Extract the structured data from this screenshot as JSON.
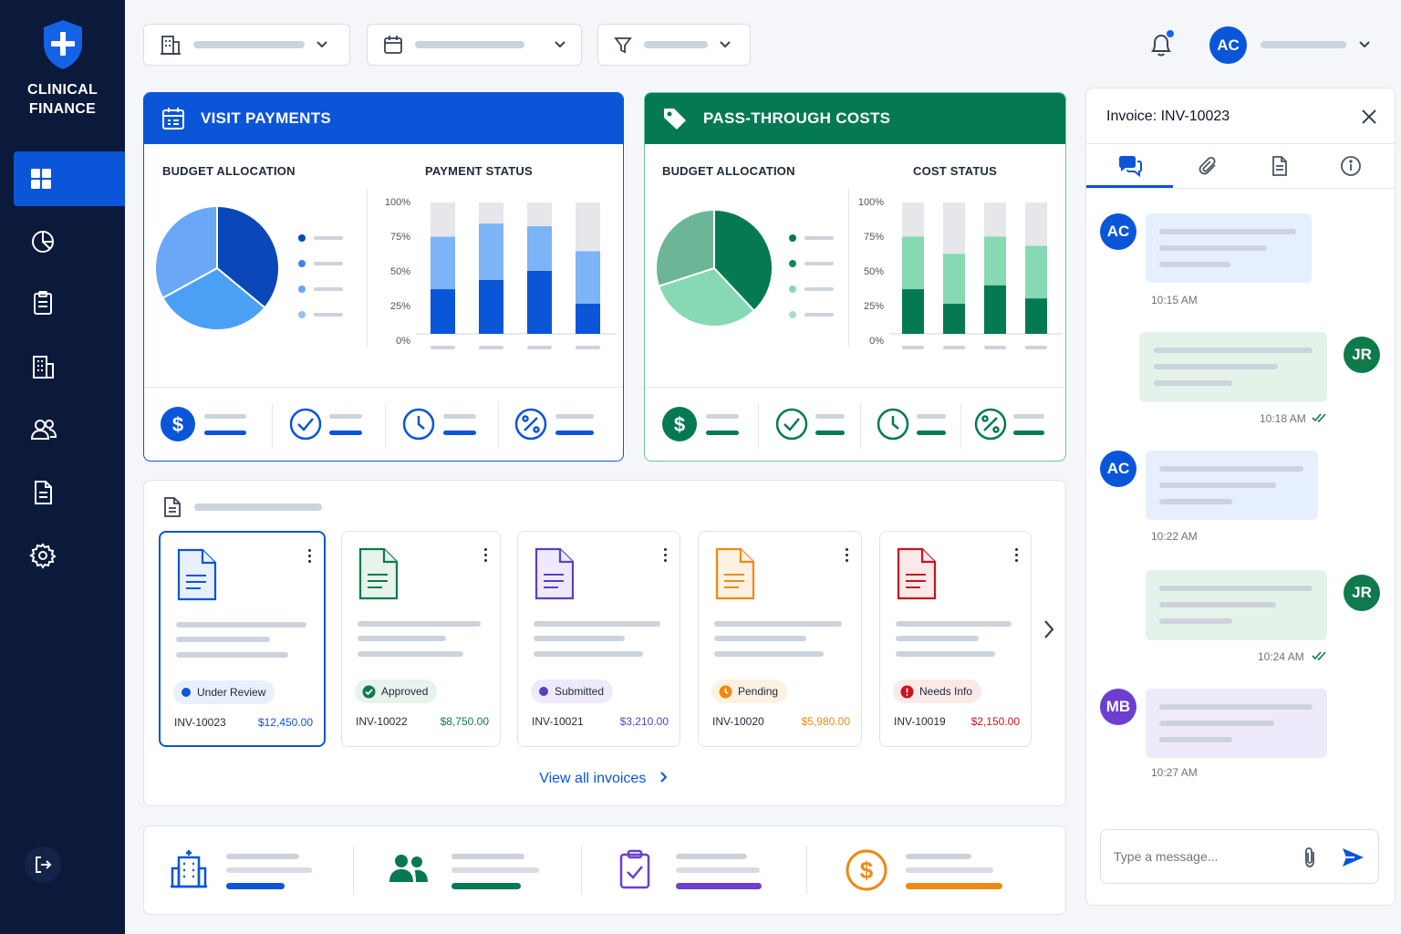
{
  "app": {
    "brand_line1": "CLINICAL",
    "brand_line2": "FINANCE"
  },
  "sidebar": {
    "items": [
      {
        "name": "dashboard",
        "icon": "grid-icon",
        "active": true
      },
      {
        "name": "reports",
        "icon": "pie-chart-icon"
      },
      {
        "name": "tasks",
        "icon": "clipboard-icon"
      },
      {
        "name": "sites",
        "icon": "building-icon"
      },
      {
        "name": "users",
        "icon": "users-icon"
      },
      {
        "name": "documents",
        "icon": "document-icon"
      },
      {
        "name": "settings",
        "icon": "gear-icon"
      }
    ],
    "logout_icon": "logout-icon"
  },
  "topbar": {
    "filters": [
      {
        "icon": "building-icon"
      },
      {
        "icon": "calendar-icon"
      },
      {
        "icon": "filter-icon"
      }
    ],
    "user_initials": "AC"
  },
  "visit_payments": {
    "title": "VISIT PAYMENTS",
    "budget_title": "BUDGET ALLOCATION",
    "status_title": "PAYMENT STATUS",
    "color": "#0b55d9"
  },
  "pass_through": {
    "title": "PASS-THROUGH COSTS",
    "budget_title": "BUDGET ALLOCATION",
    "status_title": "COST STATUS",
    "color": "#057a52"
  },
  "axis_ticks": [
    "100%",
    "75%",
    "50%",
    "25%",
    "0%"
  ],
  "chart_data": [
    {
      "type": "pie",
      "title": "BUDGET ALLOCATION",
      "values": [
        36,
        31,
        33
      ],
      "colors": [
        "#0a47b8",
        "#4aa0f5",
        "#6aa8f7"
      ]
    },
    {
      "type": "bar",
      "title": "PAYMENT STATUS",
      "categories": [
        "",
        "",
        "",
        ""
      ],
      "ylim": [
        0,
        100
      ],
      "yticks": [
        "0%",
        "25%",
        "50%",
        "75%",
        "100%"
      ],
      "series": [
        {
          "values": [
            34,
            41,
            48,
            23
          ],
          "color": "#0b55d9"
        },
        {
          "values": [
            40,
            43,
            34,
            40
          ],
          "color": "#7db4f7"
        },
        {
          "values": [
            26,
            16,
            18,
            37
          ],
          "color": "#e5e7eb"
        }
      ]
    },
    {
      "type": "pie",
      "title": "BUDGET ALLOCATION",
      "values": [
        38,
        32,
        30
      ],
      "colors": [
        "#057a52",
        "#86d9b2",
        "#6cb596"
      ]
    },
    {
      "type": "bar",
      "title": "COST STATUS",
      "categories": [
        "",
        "",
        "",
        ""
      ],
      "ylim": [
        0,
        100
      ],
      "yticks": [
        "0%",
        "25%",
        "50%",
        "75%",
        "100%"
      ],
      "series": [
        {
          "values": [
            34,
            23,
            37,
            27
          ],
          "color": "#057a52"
        },
        {
          "values": [
            40,
            38,
            37,
            40
          ],
          "color": "#86d9b2"
        },
        {
          "values": [
            26,
            39,
            26,
            33
          ],
          "color": "#e5e7eb"
        }
      ]
    }
  ],
  "invoices": {
    "header_icon": "document-icon",
    "items": [
      {
        "id": "INV-10023",
        "amount": "$12,450.00",
        "status": "Under Review",
        "color": "#0b55d9",
        "badge_bg": "#e8f0fd",
        "selected": true
      },
      {
        "id": "INV-10022",
        "amount": "$8,750.00",
        "status": "Approved",
        "color": "#0f7a4c",
        "badge_bg": "#e6f4ec"
      },
      {
        "id": "INV-10021",
        "amount": "$3,210.00",
        "status": "Submitted",
        "color": "#5b3fc4",
        "badge_bg": "#efeafb"
      },
      {
        "id": "INV-10020",
        "amount": "$5,980.00",
        "status": "Pending",
        "color": "#ee8a13",
        "badge_bg": "#fdf1e2"
      },
      {
        "id": "INV-10019",
        "amount": "$2,150.00",
        "status": "Needs Info",
        "color": "#c8161d",
        "badge_bg": "#fbe9ea"
      }
    ],
    "view_all": "View all invoices"
  },
  "chat": {
    "title": "Invoice: INV-10023",
    "tabs": [
      "chat-icon",
      "paperclip-icon",
      "document-icon",
      "info-icon"
    ],
    "messages": [
      {
        "initials": "AC",
        "time": "10:15 AM",
        "side": "left"
      },
      {
        "initials": "JR",
        "time": "10:18 AM",
        "side": "right"
      },
      {
        "initials": "AC",
        "time": "10:22 AM",
        "side": "left"
      },
      {
        "initials": "JR",
        "time": "10:24 AM",
        "side": "right"
      },
      {
        "initials": "MB",
        "time": "10:27 AM",
        "side": "left"
      }
    ],
    "input_placeholder": "Type a message..."
  }
}
